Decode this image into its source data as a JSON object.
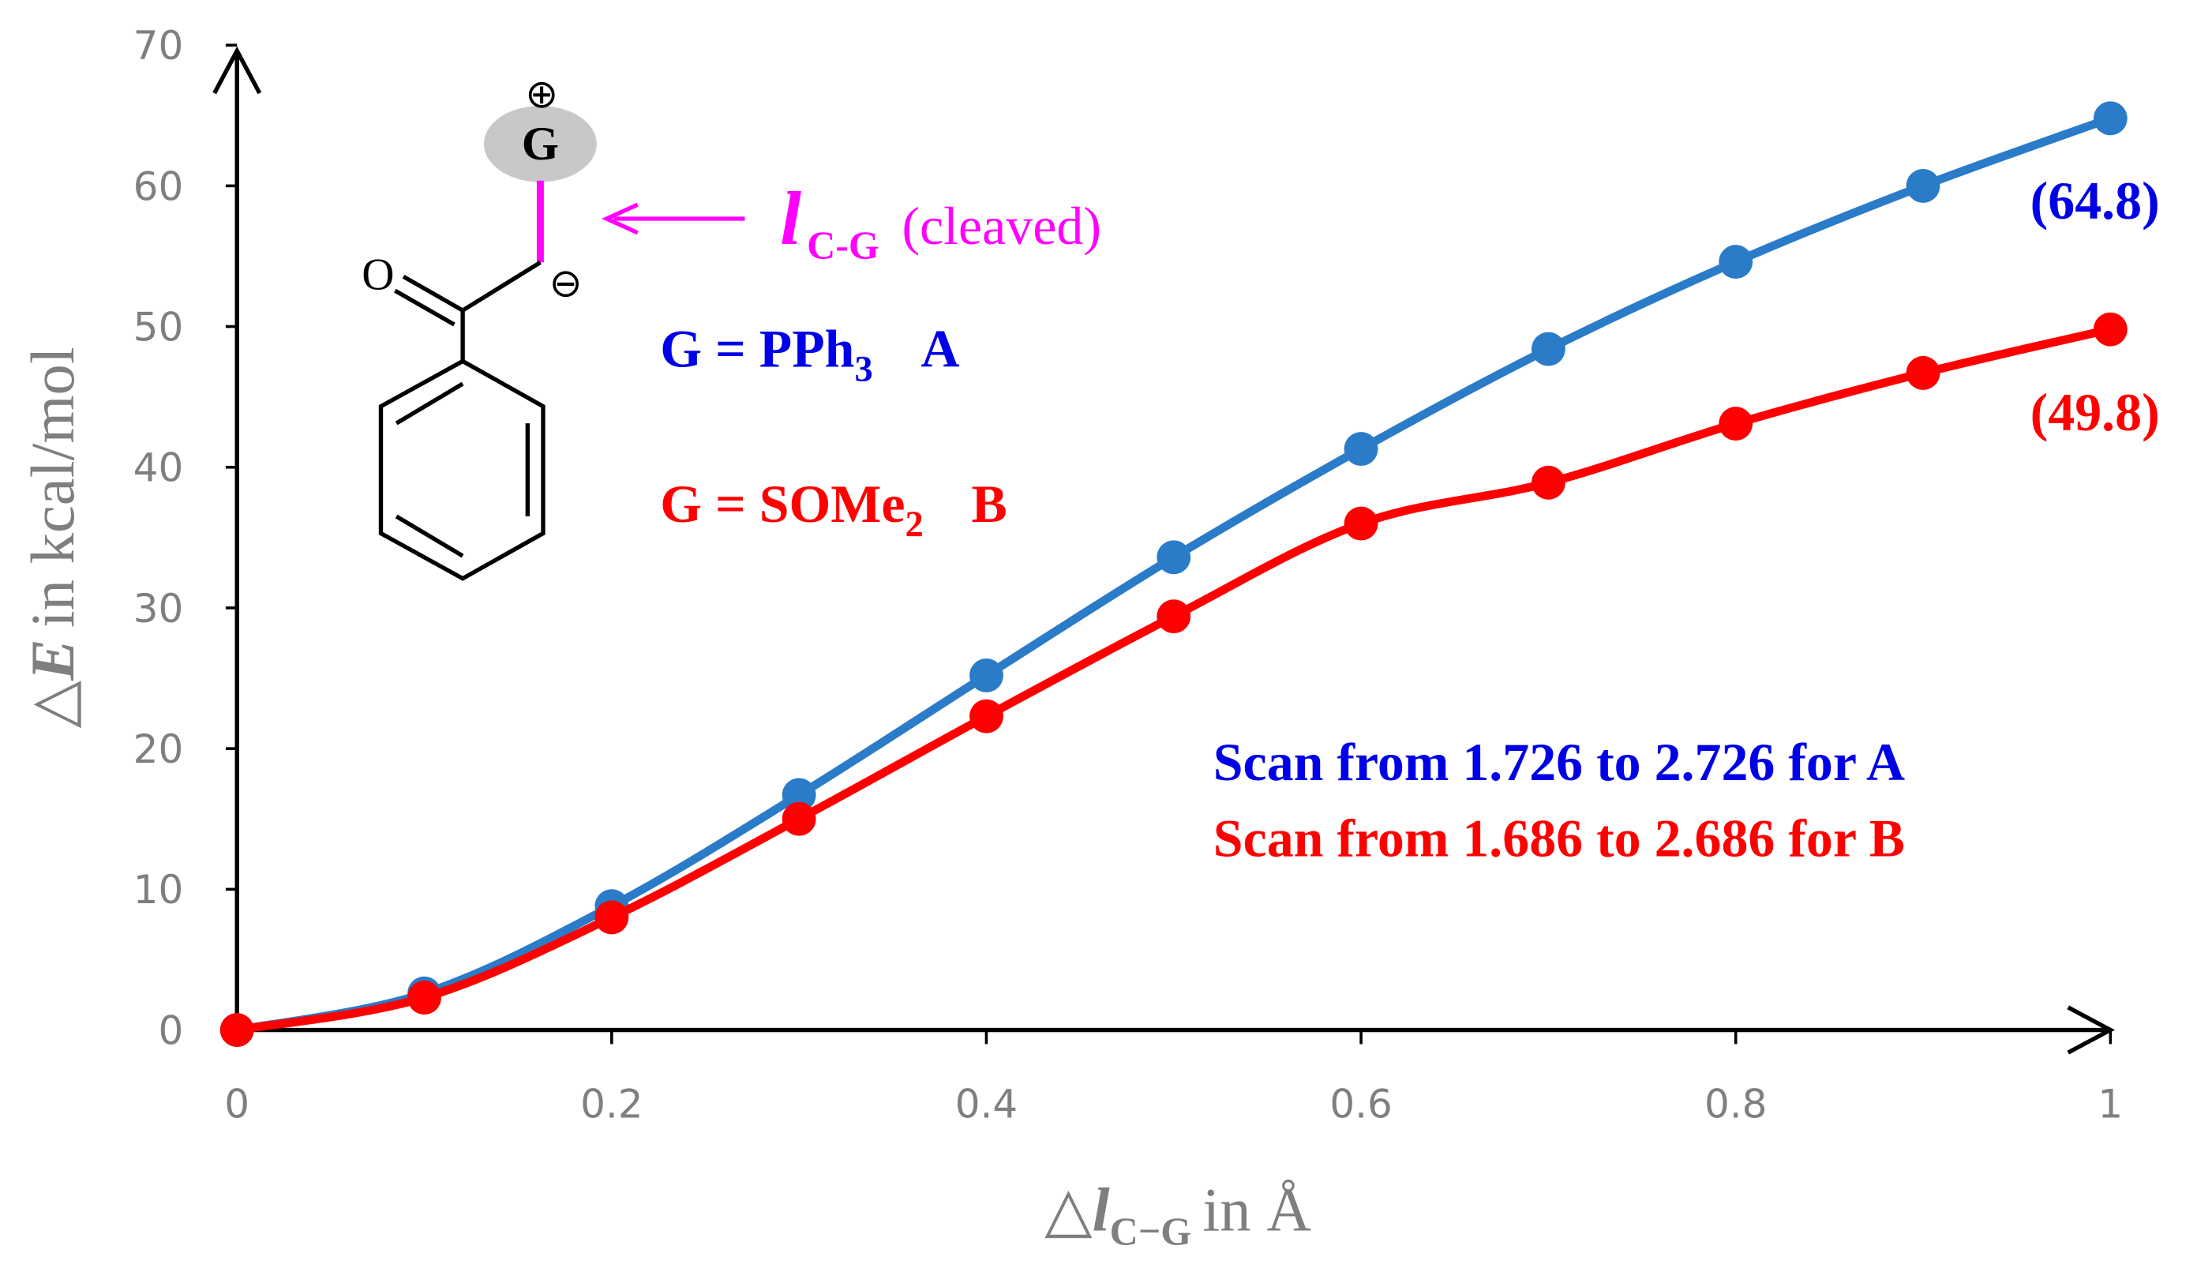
{
  "chart_data": {
    "type": "line",
    "y_label": {
      "prefix": "△",
      "symbol": "E",
      "text": "in kcal/mol"
    },
    "x_label": {
      "prefix": "△",
      "symbol": "l",
      "subscript": "C−G",
      "text": "in Å"
    },
    "x": [
      0,
      0.1,
      0.2,
      0.3,
      0.4,
      0.5,
      0.6,
      0.7,
      0.8,
      0.9,
      1
    ],
    "series": [
      {
        "name": "A",
        "color": "#2a7bc8",
        "values": [
          0,
          2.6,
          8.8,
          16.7,
          25.2,
          33.6,
          41.3,
          48.4,
          54.6,
          60.0,
          64.8
        ]
      },
      {
        "name": "B",
        "color": "#ff0000",
        "values": [
          0,
          2.3,
          8.0,
          15.0,
          22.3,
          29.4,
          36.0,
          38.9,
          43.1,
          46.7,
          49.8
        ]
      }
    ],
    "xlim": [
      0,
      1
    ],
    "ylim": [
      0,
      70
    ],
    "xticks": [
      0,
      0.2,
      0.4,
      0.6,
      0.8,
      1
    ],
    "yticks": [
      0,
      10,
      20,
      30,
      40,
      50,
      60,
      70
    ],
    "annotations": [
      {
        "text": "(64.8)",
        "color": "#0000e6"
      },
      {
        "text": "(49.8)",
        "color": "#ff0000"
      }
    ],
    "legend": [
      {
        "text": "G = PPh",
        "subscript": "3",
        "label": "A",
        "color": "#0000e6"
      },
      {
        "text": "G = SOMe",
        "subscript": "2",
        "label": "B",
        "color": "#ff0000"
      }
    ],
    "scan_notes": [
      {
        "text": "Scan from 1.726 to 2.726 for A",
        "color": "#0000e6"
      },
      {
        "text": "Scan from 1.686 to 2.686 for B",
        "color": "#ff0000"
      }
    ],
    "structure": {
      "group": "G",
      "plus": "⊕",
      "minus": "⊖",
      "oxygen": "O",
      "bond_symbol": "l",
      "bond_subscript": "C-G",
      "bond_note": "(cleaved)"
    }
  }
}
